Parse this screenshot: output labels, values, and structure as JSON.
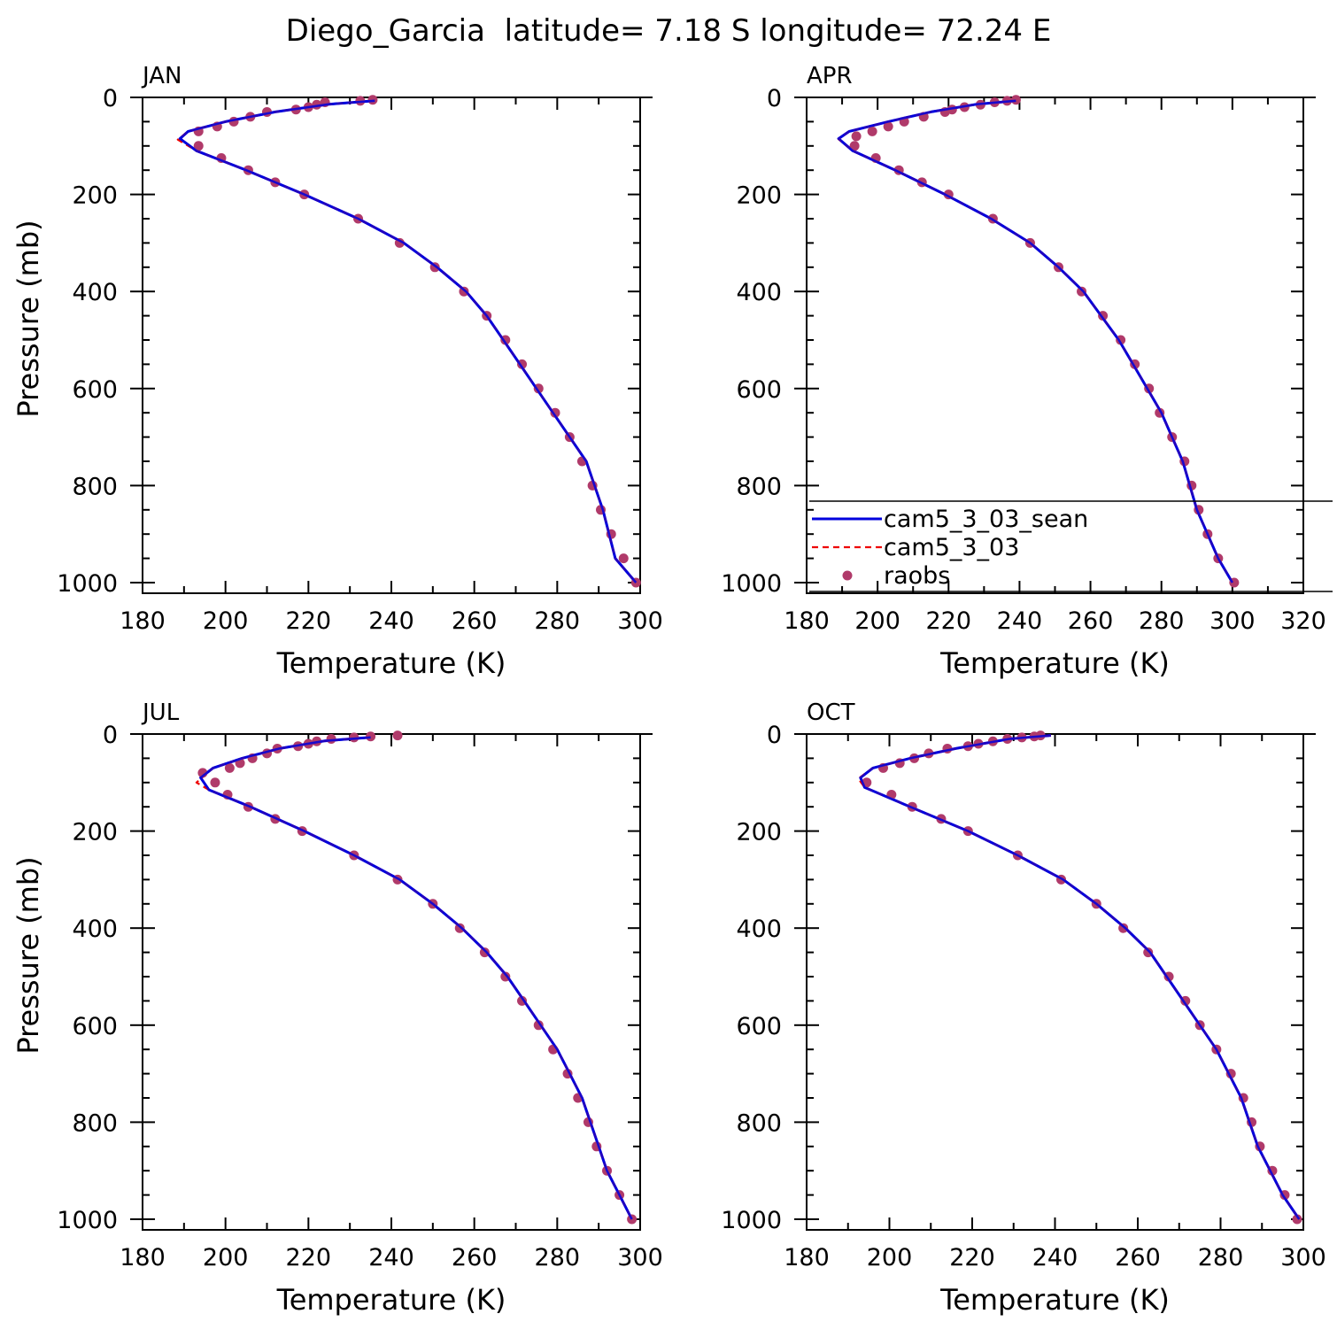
{
  "title": "Diego_Garcia  latitude= 7.18 S longitude= 72.24 E",
  "colors": {
    "sean": "#0000dd",
    "base": "#ee0000",
    "raobs": "#b03a6a",
    "axis": "#000000"
  },
  "legend": {
    "placement": "lower-right of APR panel",
    "entries": [
      {
        "label": "cam5_3_03_sean",
        "style": "solid",
        "color": "#0000dd"
      },
      {
        "label": "cam5_3_03",
        "style": "dashed",
        "color": "#ee0000"
      },
      {
        "label": "raobs",
        "style": "marker",
        "color": "#b03a6a"
      }
    ]
  },
  "chart_data": [
    {
      "type": "line",
      "panel_label": "JAN",
      "xlabel": "Temperature (K)",
      "ylabel": "Pressure (mb)",
      "xlim": [
        180,
        300
      ],
      "ylim": [
        0,
        1025
      ],
      "y_inverted": true,
      "xticks": [
        180,
        200,
        220,
        240,
        260,
        280,
        300
      ],
      "yticks": [
        0,
        200,
        400,
        600,
        800,
        1000
      ],
      "series": [
        {
          "name": "cam5_3_03_sean",
          "style": "solid",
          "x": [
            236,
            225,
            212,
            200,
            191,
            189,
            193,
            205,
            219,
            232,
            243,
            251,
            258,
            263,
            267,
            271,
            275,
            279,
            283,
            287,
            291,
            294,
            299
          ],
          "y": [
            7,
            14,
            30,
            50,
            70,
            85,
            110,
            150,
            200,
            250,
            300,
            350,
            400,
            450,
            500,
            550,
            600,
            650,
            700,
            750,
            850,
            950,
            1000
          ]
        },
        {
          "name": "cam5_3_03",
          "style": "dashed",
          "x": [
            236,
            225,
            212,
            200,
            191,
            188.5,
            193,
            205,
            219,
            232,
            243,
            251,
            258,
            263,
            267,
            271,
            275,
            279,
            283,
            287,
            291,
            294,
            299
          ],
          "y": [
            7,
            14,
            30,
            50,
            70,
            87,
            110,
            150,
            200,
            250,
            300,
            350,
            400,
            450,
            500,
            550,
            600,
            650,
            700,
            750,
            850,
            950,
            1000
          ]
        },
        {
          "name": "raobs",
          "style": "marker",
          "x": [
            235.5,
            232.5,
            224,
            222,
            220,
            217,
            210,
            206,
            202,
            198,
            193.5,
            193.5,
            199,
            205.5,
            212,
            219,
            232,
            242,
            250.5,
            257.5,
            263,
            267.5,
            271.5,
            275.5,
            279.5,
            283,
            286,
            288.5,
            290.5,
            293,
            296,
            299
          ],
          "y": [
            5,
            7,
            10,
            15,
            20,
            25,
            30,
            40,
            50,
            60,
            70,
            100,
            125,
            150,
            175,
            200,
            250,
            300,
            350,
            400,
            450,
            500,
            550,
            600,
            650,
            700,
            750,
            800,
            850,
            900,
            950,
            1000
          ]
        }
      ]
    },
    {
      "type": "line",
      "panel_label": "APR",
      "xlabel": "Temperature (K)",
      "ylabel": "",
      "xlim": [
        180,
        320
      ],
      "ylim": [
        0,
        1025
      ],
      "y_inverted": true,
      "xticks": [
        180,
        200,
        220,
        240,
        260,
        280,
        300,
        320
      ],
      "yticks": [
        0,
        200,
        400,
        600,
        800,
        1000
      ],
      "series": [
        {
          "name": "cam5_3_03_sean",
          "style": "solid",
          "x": [
            239,
            228,
            215,
            203,
            192,
            189,
            193,
            205,
            219,
            232,
            243,
            251,
            258,
            263,
            268,
            272,
            276,
            280,
            283,
            286,
            288,
            290,
            293,
            296,
            300
          ],
          "y": [
            7,
            14,
            30,
            50,
            70,
            85,
            110,
            150,
            200,
            250,
            300,
            350,
            400,
            450,
            500,
            550,
            600,
            650,
            700,
            750,
            800,
            850,
            900,
            950,
            1000
          ]
        },
        {
          "name": "cam5_3_03",
          "style": "dashed",
          "x": [
            239,
            228,
            215,
            203,
            192,
            189,
            193,
            205,
            219,
            232,
            243,
            251,
            258,
            263,
            268,
            272,
            276,
            280,
            283,
            286,
            288,
            290,
            293,
            296,
            300
          ],
          "y": [
            7,
            14,
            30,
            50,
            70,
            86,
            110,
            150,
            200,
            250,
            300,
            350,
            400,
            450,
            500,
            550,
            600,
            650,
            700,
            750,
            800,
            850,
            900,
            950,
            1000
          ]
        },
        {
          "name": "raobs",
          "style": "marker",
          "x": [
            239,
            236.5,
            233,
            229,
            224.5,
            221,
            219,
            213,
            207.5,
            203,
            198.5,
            194,
            193.5,
            199.5,
            206,
            212.5,
            220,
            232.5,
            243,
            251,
            257.5,
            263.5,
            268.5,
            272.5,
            276.5,
            279.5,
            283,
            286.5,
            288.5,
            290.5,
            293,
            296,
            300.5
          ],
          "y": [
            5,
            7,
            10,
            15,
            20,
            25,
            30,
            40,
            50,
            60,
            70,
            80,
            100,
            125,
            150,
            175,
            200,
            250,
            300,
            350,
            400,
            450,
            500,
            550,
            600,
            650,
            700,
            750,
            800,
            850,
            900,
            950,
            1000
          ]
        }
      ]
    },
    {
      "type": "line",
      "panel_label": "JUL",
      "xlabel": "Temperature (K)",
      "ylabel": "Pressure (mb)",
      "xlim": [
        180,
        300
      ],
      "ylim": [
        0,
        1025
      ],
      "y_inverted": true,
      "xticks": [
        180,
        200,
        220,
        240,
        260,
        280,
        300
      ],
      "yticks": [
        0,
        200,
        400,
        600,
        800,
        1000
      ],
      "series": [
        {
          "name": "cam5_3_03_sean",
          "style": "solid",
          "x": [
            235,
            224,
            213,
            204,
            197,
            194,
            196,
            206,
            219,
            231,
            242,
            250,
            257,
            263,
            268,
            272,
            276,
            280,
            283,
            286,
            288,
            290,
            292,
            295,
            298
          ],
          "y": [
            7,
            14,
            30,
            50,
            70,
            90,
            115,
            150,
            200,
            250,
            300,
            350,
            400,
            450,
            500,
            550,
            600,
            650,
            700,
            750,
            800,
            850,
            900,
            950,
            1000
          ]
        },
        {
          "name": "cam5_3_03",
          "style": "dashed",
          "x": [
            235,
            224,
            213,
            204,
            197,
            193,
            196,
            206,
            219,
            231,
            242,
            250,
            257,
            263,
            268,
            272,
            276,
            280,
            283,
            286,
            288,
            290,
            292,
            295,
            298
          ],
          "y": [
            7,
            14,
            30,
            50,
            70,
            100,
            115,
            150,
            200,
            250,
            300,
            350,
            400,
            450,
            500,
            550,
            600,
            650,
            700,
            750,
            800,
            850,
            900,
            950,
            1000
          ]
        },
        {
          "name": "raobs",
          "style": "marker",
          "x": [
            241.5,
            235,
            231,
            225.5,
            222,
            220,
            217.5,
            212.5,
            210,
            206.5,
            203.5,
            201,
            194.5,
            197.5,
            200.5,
            205.5,
            212,
            218.5,
            231,
            241.5,
            250,
            256.5,
            262.5,
            267.5,
            271.5,
            275.5,
            279,
            282.5,
            285,
            287.5,
            289.5,
            292,
            295,
            298
          ],
          "y": [
            3,
            5,
            7,
            10,
            15,
            20,
            25,
            30,
            40,
            50,
            60,
            70,
            80,
            100,
            125,
            150,
            175,
            200,
            250,
            300,
            350,
            400,
            450,
            500,
            550,
            600,
            650,
            700,
            750,
            800,
            850,
            900,
            950,
            1000
          ]
        }
      ]
    },
    {
      "type": "line",
      "panel_label": "OCT",
      "xlabel": "Temperature (K)",
      "ylabel": "",
      "xlim": [
        180,
        300
      ],
      "ylim": [
        0,
        1025
      ],
      "y_inverted": true,
      "xticks": [
        180,
        200,
        220,
        240,
        260,
        280,
        300
      ],
      "yticks": [
        0,
        200,
        400,
        600,
        800,
        1000
      ],
      "series": [
        {
          "name": "cam5_3_03_sean",
          "style": "solid",
          "x": [
            239,
            229,
            216,
            205,
            196,
            193,
            194,
            205,
            219,
            231,
            242,
            250,
            257,
            263,
            267,
            271,
            275,
            279,
            282,
            285,
            287,
            289,
            292,
            295,
            299
          ],
          "y": [
            3,
            10,
            30,
            50,
            70,
            90,
            110,
            150,
            200,
            250,
            300,
            350,
            400,
            450,
            500,
            550,
            600,
            650,
            700,
            750,
            800,
            850,
            900,
            950,
            1000
          ]
        },
        {
          "name": "cam5_3_03",
          "style": "dashed",
          "x": [
            239,
            229,
            216,
            205,
            196,
            192.5,
            194,
            205,
            219,
            231,
            242,
            250,
            257,
            263,
            267,
            271,
            275,
            279,
            282,
            285,
            287,
            289,
            292,
            295,
            299
          ],
          "y": [
            3,
            10,
            30,
            50,
            70,
            92,
            110,
            150,
            200,
            250,
            300,
            350,
            400,
            450,
            500,
            550,
            600,
            650,
            700,
            750,
            800,
            850,
            900,
            950,
            1000
          ]
        },
        {
          "name": "raobs",
          "style": "marker",
          "x": [
            236.5,
            235,
            232,
            228.5,
            225,
            221.5,
            219,
            214,
            209.5,
            206,
            202.5,
            198.5,
            194.5,
            200.5,
            205.5,
            212.5,
            219,
            231,
            241.5,
            250,
            256.5,
            262.5,
            267.5,
            271.5,
            275,
            279,
            282.5,
            285.5,
            287.5,
            289.5,
            292.5,
            295.5,
            298.5
          ],
          "y": [
            3,
            5,
            7,
            10,
            15,
            20,
            25,
            30,
            40,
            50,
            60,
            70,
            100,
            125,
            150,
            175,
            200,
            250,
            300,
            350,
            400,
            450,
            500,
            550,
            600,
            650,
            700,
            750,
            800,
            850,
            900,
            950,
            1000
          ]
        }
      ]
    }
  ]
}
